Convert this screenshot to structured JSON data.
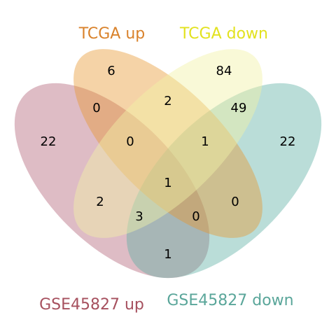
{
  "sets": {
    "tcga_up": {
      "label": "TCGA up",
      "color": "#E8962E",
      "label_color": "#D9822B"
    },
    "tcga_down": {
      "label": "TCGA down",
      "color": "#F2F2A6",
      "label_color": "#E2E21E"
    },
    "gse_up": {
      "label": "GSE45827 up",
      "color": "#B56A7E",
      "label_color": "#A6505E"
    },
    "gse_down": {
      "label": "GSE45827 down",
      "color": "#5AAEA2",
      "label_color": "#5AA69A"
    }
  },
  "regions": {
    "tcga_up_only": "6",
    "tcga_down_only": "84",
    "gse_up_only": "22",
    "gse_down_only": "22",
    "tcga_up_tcga_down": "2",
    "tcga_up_gse_up": "0",
    "tcga_down_gse_down": "49",
    "tcga_up_tcga_down_gse_up": "0",
    "tcga_up_tcga_down_gse_down": "1",
    "all_four": "1",
    "tcga_down_gse_up": "2",
    "tcga_up_gse_down": "0",
    "tcga_down_gse_up_gse_down": "3",
    "tcga_up_gse_up_gse_down": "0",
    "gse_up_gse_down": "1"
  }
}
